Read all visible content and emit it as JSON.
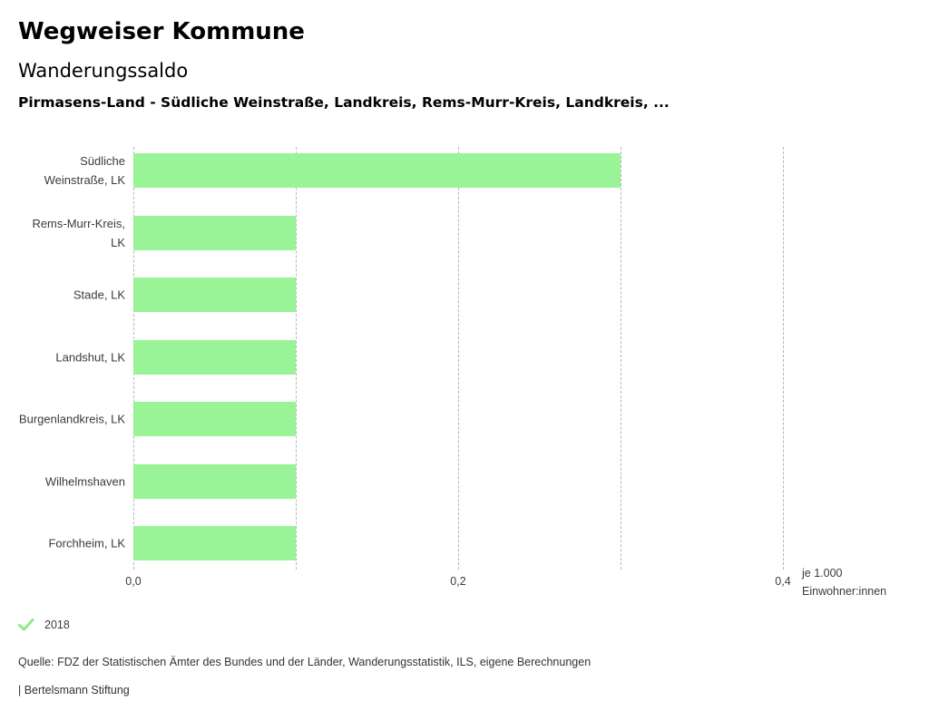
{
  "header": {
    "title": "Wegweiser Kommune",
    "subtitle": "Wanderungssaldo",
    "selection": "Pirmasens-Land - Südliche Weinstraße, Landkreis, Rems-Murr-Kreis, Landkreis, ..."
  },
  "chart_data": {
    "type": "bar",
    "orientation": "horizontal",
    "categories": [
      "Südliche Weinstraße, LK",
      "Rems-Murr-Kreis, LK",
      "Stade, LK",
      "Landshut, LK",
      "Burgenlandkreis, LK",
      "Wilhelmshaven",
      "Forchheim, LK"
    ],
    "series": [
      {
        "name": "2018",
        "values": [
          0.3,
          0.1,
          0.1,
          0.1,
          0.1,
          0.1,
          0.1
        ]
      }
    ],
    "xlim": [
      0,
      0.4
    ],
    "x_ticks": [
      "0,0",
      "0,2",
      "0,4"
    ],
    "x_tick_values": [
      0.0,
      0.2,
      0.4
    ],
    "gridline_values": [
      0.0,
      0.1,
      0.2,
      0.3,
      0.4
    ],
    "unit_label_line1": "je 1.000",
    "unit_label_line2": "Einwohner:innen",
    "bar_color": "#98f496",
    "grid": true,
    "legend_position": "bottom-left"
  },
  "legend": {
    "items": [
      {
        "label": "2018",
        "icon": "check-icon",
        "color": "#8deb8d",
        "selected": true
      }
    ]
  },
  "footer": {
    "source": "Quelle: FDZ der Statistischen Ämter des Bundes und der Länder, Wanderungsstatistik, ILS, eigene Berechnungen",
    "attribution": "| Bertelsmann Stiftung"
  }
}
